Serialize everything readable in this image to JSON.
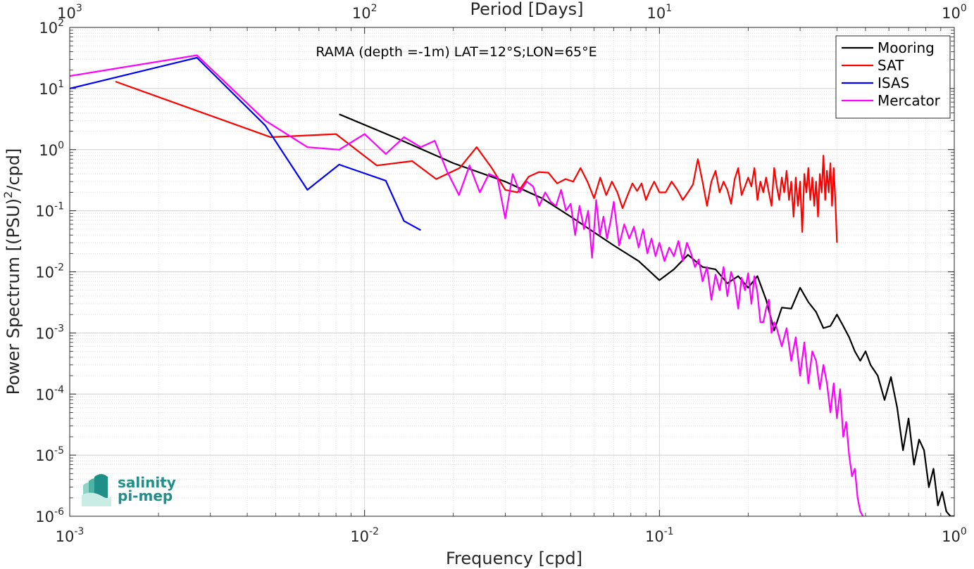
{
  "chart_data": {
    "type": "line",
    "title": "RAMA (depth =-1m) LAT=12°S;LON=65°E",
    "xlabel": "Frequency [cpd]",
    "ylabel": "Power Spectrum [(PSU)²/cpd]",
    "ylabel_parts": {
      "before": "Power Spectrum [(PSU)",
      "sup": "2",
      "after": "/cpd]"
    },
    "top_xlabel": "Period [Days]",
    "x_scale": "log",
    "y_scale": "log",
    "xlim": [
      0.001,
      1
    ],
    "ylim": [
      1e-06,
      100
    ],
    "grid": true,
    "legend_position": "top-right",
    "x_ticks": [
      {
        "value": 0.001,
        "base": "10",
        "exp": "-3"
      },
      {
        "value": 0.01,
        "base": "10",
        "exp": "-2"
      },
      {
        "value": 0.1,
        "base": "10",
        "exp": "-1"
      },
      {
        "value": 1,
        "base": "10",
        "exp": "0"
      }
    ],
    "top_ticks": [
      {
        "value": 0.001,
        "base": "10",
        "exp": "3"
      },
      {
        "value": 0.01,
        "base": "10",
        "exp": "2"
      },
      {
        "value": 0.1,
        "base": "10",
        "exp": "1"
      },
      {
        "value": 1,
        "base": "10",
        "exp": "0"
      }
    ],
    "y_ticks": [
      {
        "value": 100,
        "base": "10",
        "exp": "2"
      },
      {
        "value": 10,
        "base": "10",
        "exp": "1"
      },
      {
        "value": 1,
        "base": "10",
        "exp": "0"
      },
      {
        "value": 0.1,
        "base": "10",
        "exp": "-1"
      },
      {
        "value": 0.01,
        "base": "10",
        "exp": "-2"
      },
      {
        "value": 0.001,
        "base": "10",
        "exp": "-3"
      },
      {
        "value": 0.0001,
        "base": "10",
        "exp": "-4"
      },
      {
        "value": 1e-05,
        "base": "10",
        "exp": "-5"
      },
      {
        "value": 1e-06,
        "base": "10",
        "exp": "-6"
      }
    ],
    "series": [
      {
        "name": "Mooring",
        "color": "#000000",
        "x": [
          0.0082,
          0.013,
          0.02,
          0.03,
          0.04,
          0.05,
          0.07,
          0.085,
          0.1,
          0.112,
          0.125,
          0.14,
          0.155,
          0.17,
          0.185,
          0.2,
          0.215,
          0.23,
          0.245,
          0.26,
          0.28,
          0.3,
          0.32,
          0.34,
          0.36,
          0.38,
          0.4,
          0.42,
          0.44,
          0.46,
          0.48,
          0.5,
          0.52,
          0.55,
          0.58,
          0.61,
          0.64,
          0.67,
          0.7,
          0.73,
          0.76,
          0.79,
          0.82,
          0.85,
          0.88,
          0.91,
          0.94,
          0.97,
          1.0
        ],
        "y": [
          3.8,
          1.5,
          0.6,
          0.3,
          0.16,
          0.08,
          0.027,
          0.015,
          0.0073,
          0.011,
          0.019,
          0.012,
          0.011,
          0.0065,
          0.0085,
          0.0055,
          0.0085,
          0.0035,
          0.0011,
          0.0026,
          0.0025,
          0.0055,
          0.0032,
          0.0022,
          0.0012,
          0.0013,
          0.002,
          0.0013,
          0.00085,
          0.0005,
          0.00035,
          0.0005,
          0.0003,
          0.0002,
          8e-05,
          0.00019,
          6e-05,
          1.2e-05,
          4e-05,
          7e-06,
          1.8e-05,
          1.2e-05,
          3e-06,
          6e-06,
          1.5e-06,
          2.5e-06,
          1.2e-06,
          1e-06,
          1e-06
        ]
      },
      {
        "name": "SAT",
        "color": "#ff0000",
        "x": [
          0.00143,
          0.0048,
          0.008,
          0.011,
          0.0145,
          0.0175,
          0.021,
          0.024,
          0.027,
          0.03,
          0.033,
          0.036,
          0.039,
          0.042,
          0.045,
          0.048,
          0.051,
          0.054,
          0.057,
          0.06,
          0.063,
          0.066,
          0.069,
          0.072,
          0.075,
          0.078,
          0.081,
          0.084,
          0.087,
          0.09,
          0.093,
          0.096,
          0.1,
          0.105,
          0.11,
          0.115,
          0.12,
          0.125,
          0.13,
          0.135,
          0.14,
          0.145,
          0.15,
          0.155,
          0.16,
          0.165,
          0.17,
          0.175,
          0.18,
          0.185,
          0.19,
          0.195,
          0.2,
          0.205,
          0.21,
          0.215,
          0.22,
          0.225,
          0.23,
          0.235,
          0.24,
          0.245,
          0.25,
          0.255,
          0.26,
          0.265,
          0.27,
          0.275,
          0.28,
          0.285,
          0.29,
          0.295,
          0.3,
          0.305,
          0.31,
          0.315,
          0.32,
          0.325,
          0.33,
          0.335,
          0.34,
          0.345,
          0.35,
          0.355,
          0.36,
          0.365,
          0.37,
          0.375,
          0.38,
          0.385,
          0.39,
          0.395,
          0.4
        ],
        "y": [
          13,
          1.6,
          1.8,
          0.55,
          0.65,
          0.33,
          0.5,
          1.1,
          0.5,
          0.22,
          0.2,
          0.36,
          0.43,
          0.42,
          0.28,
          0.33,
          0.3,
          0.5,
          0.3,
          0.16,
          0.35,
          0.18,
          0.3,
          0.2,
          0.11,
          0.18,
          0.28,
          0.21,
          0.28,
          0.15,
          0.22,
          0.3,
          0.2,
          0.2,
          0.3,
          0.22,
          0.15,
          0.2,
          0.27,
          0.7,
          0.3,
          0.12,
          0.3,
          0.45,
          0.2,
          0.3,
          0.22,
          0.13,
          0.33,
          0.5,
          0.18,
          0.25,
          0.35,
          0.25,
          0.5,
          0.15,
          0.3,
          0.2,
          0.35,
          0.2,
          0.12,
          0.5,
          0.25,
          0.15,
          0.35,
          0.2,
          0.45,
          0.15,
          0.3,
          0.08,
          0.35,
          0.12,
          0.3,
          0.045,
          0.4,
          0.2,
          0.5,
          0.15,
          0.35,
          0.12,
          0.3,
          0.08,
          0.4,
          0.2,
          0.8,
          0.15,
          0.45,
          0.2,
          0.6,
          0.12,
          0.5,
          0.15,
          0.03
        ]
      },
      {
        "name": "ISAS",
        "color": "#0000ff",
        "x": [
          0.001,
          0.0027,
          0.0046,
          0.0064,
          0.0082,
          0.0118,
          0.0136,
          0.0155
        ],
        "y": [
          10,
          32,
          2.5,
          0.22,
          0.57,
          0.31,
          0.068,
          0.048
        ]
      },
      {
        "name": "Mercator",
        "color": "#ff00ff",
        "x": [
          0.001,
          0.0027,
          0.0046,
          0.0064,
          0.0082,
          0.01,
          0.0118,
          0.0136,
          0.0155,
          0.0173,
          0.019,
          0.0209,
          0.0227,
          0.0246,
          0.0264,
          0.0282,
          0.03,
          0.0318,
          0.0336,
          0.0355,
          0.0373,
          0.0391,
          0.041,
          0.0428,
          0.0446,
          0.0464,
          0.0482,
          0.05,
          0.0518,
          0.0536,
          0.0555,
          0.0573,
          0.0591,
          0.061,
          0.0628,
          0.0646,
          0.0664,
          0.0682,
          0.07,
          0.073,
          0.076,
          0.079,
          0.082,
          0.085,
          0.088,
          0.091,
          0.094,
          0.097,
          0.1,
          0.104,
          0.108,
          0.112,
          0.116,
          0.12,
          0.124,
          0.128,
          0.132,
          0.136,
          0.14,
          0.145,
          0.15,
          0.155,
          0.16,
          0.165,
          0.17,
          0.175,
          0.18,
          0.185,
          0.19,
          0.195,
          0.2,
          0.205,
          0.21,
          0.215,
          0.22,
          0.225,
          0.23,
          0.235,
          0.24,
          0.245,
          0.25,
          0.26,
          0.27,
          0.28,
          0.29,
          0.3,
          0.31,
          0.32,
          0.33,
          0.34,
          0.35,
          0.36,
          0.37,
          0.38,
          0.39,
          0.4,
          0.41,
          0.42,
          0.43,
          0.44,
          0.45,
          0.46,
          0.47,
          0.48,
          0.49
        ],
        "y": [
          16,
          35,
          3,
          1.1,
          1,
          1.8,
          0.85,
          1.6,
          1.1,
          1.4,
          0.45,
          0.18,
          0.55,
          0.2,
          0.4,
          0.35,
          0.075,
          0.4,
          0.2,
          0.3,
          0.25,
          0.12,
          0.2,
          0.14,
          0.12,
          0.22,
          0.1,
          0.13,
          0.04,
          0.12,
          0.05,
          0.1,
          0.017,
          0.15,
          0.04,
          0.08,
          0.035,
          0.065,
          0.14,
          0.027,
          0.06,
          0.035,
          0.055,
          0.025,
          0.05,
          0.02,
          0.035,
          0.018,
          0.03,
          0.015,
          0.025,
          0.018,
          0.032,
          0.015,
          0.03,
          0.02,
          0.012,
          0.016,
          0.007,
          0.012,
          0.0035,
          0.009,
          0.005,
          0.012,
          0.004,
          0.01,
          0.0065,
          0.0025,
          0.008,
          0.005,
          0.0095,
          0.003,
          0.0085,
          0.0045,
          0.0015,
          0.0015,
          0.0025,
          0.0035,
          0.001,
          0.0015,
          0.0012,
          0.0006,
          0.0012,
          0.00035,
          0.00085,
          0.0002,
          0.0007,
          0.00015,
          0.0005,
          0.00035,
          0.00012,
          0.0003,
          0.00015,
          5e-05,
          0.00015,
          4e-05,
          0.00012,
          2e-05,
          3.5e-05,
          1e-05,
          4.5e-06,
          6e-06,
          2e-06,
          1.2e-06,
          1e-06
        ]
      }
    ]
  },
  "logo": {
    "line1": "salinity",
    "line2": "pi-mep",
    "color": "#1f8f87"
  }
}
